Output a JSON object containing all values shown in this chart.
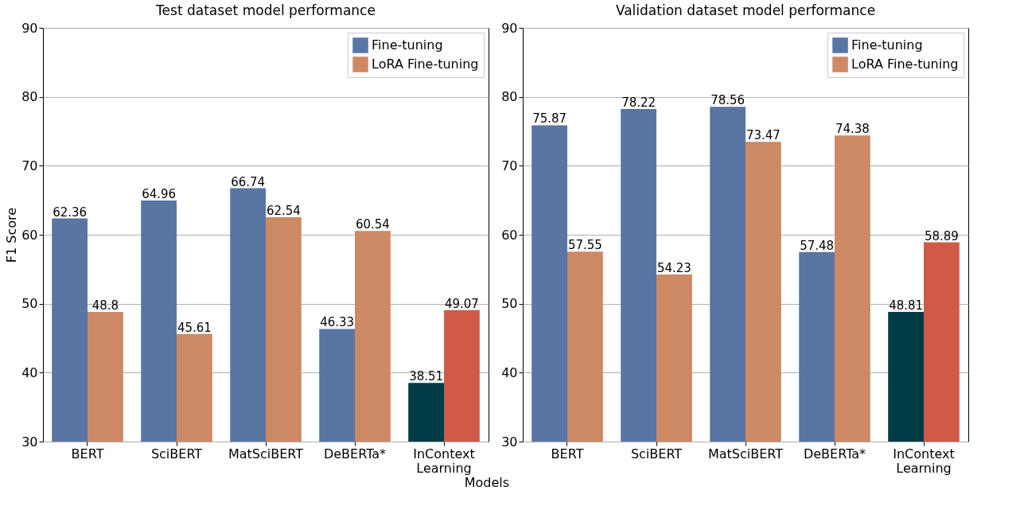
{
  "chart_data": [
    {
      "type": "bar",
      "title": "Test dataset model performance",
      "xlabel": "Models",
      "ylabel": "F1 Score",
      "categories": [
        "BERT",
        "SciBERT",
        "MatSciBERT",
        "DeBERTa*",
        "InContext Learning"
      ],
      "series": [
        {
          "name": "Fine-tuning",
          "color": "#5975a4",
          "values": [
            62.36,
            64.96,
            66.74,
            46.33,
            null
          ]
        },
        {
          "name": "LoRA Fine-tuning",
          "color": "#cc8963",
          "values": [
            48.8,
            45.61,
            62.54,
            60.54,
            null
          ]
        },
        {
          "color": "#003c46",
          "values": [
            null,
            null,
            null,
            null,
            38.51
          ]
        },
        {
          "color": "#cf5a46",
          "values": [
            null,
            null,
            null,
            null,
            49.07
          ]
        }
      ],
      "ylim": [
        30,
        90
      ],
      "yticks": [
        30,
        40,
        50,
        60,
        70,
        80,
        90
      ],
      "grid": "y",
      "legend": "top right",
      "data_labels": true
    },
    {
      "type": "bar",
      "title": "Validation dataset model performance",
      "categories": [
        "BERT",
        "SciBERT",
        "MatSciBERT",
        "DeBERTa*",
        "InContext Learning"
      ],
      "series": [
        {
          "name": "Fine-tuning",
          "color": "#5975a4",
          "values": [
            75.87,
            78.22,
            78.56,
            57.48,
            null
          ]
        },
        {
          "name": "LoRA Fine-tuning",
          "color": "#cc8963",
          "values": [
            57.55,
            54.23,
            73.47,
            74.38,
            null
          ]
        },
        {
          "color": "#003c46",
          "values": [
            null,
            null,
            null,
            null,
            48.81
          ]
        },
        {
          "color": "#cf5a46",
          "values": [
            null,
            null,
            null,
            null,
            58.89
          ]
        }
      ],
      "ylim": [
        30,
        90
      ],
      "yticks": [
        30,
        40,
        50,
        60,
        70,
        80,
        90
      ],
      "grid": "y",
      "legend": "top right",
      "data_labels": true
    }
  ]
}
